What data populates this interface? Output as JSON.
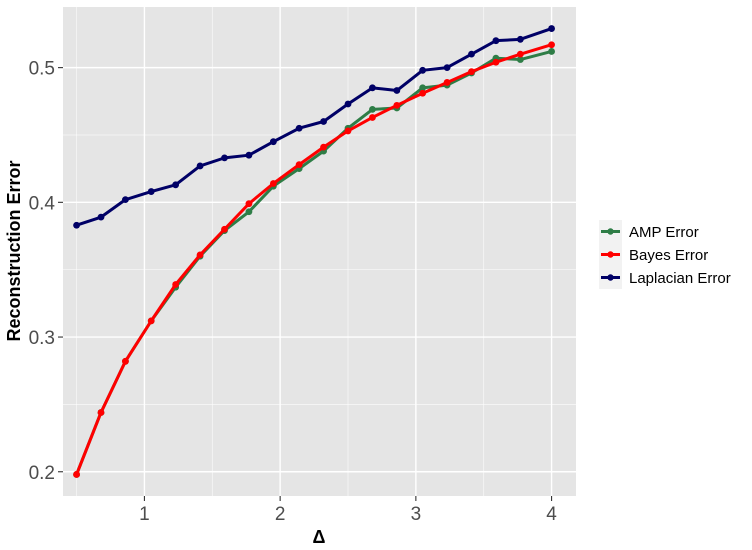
{
  "chart_data": {
    "type": "line",
    "title": "",
    "xlabel": "Δ",
    "ylabel": "Reconstruction Error",
    "xlim": [
      0.4,
      4.18
    ],
    "ylim": [
      0.182,
      0.545
    ],
    "x_ticks": [
      1,
      2,
      3,
      4
    ],
    "x_tick_labels": [
      "1",
      "2",
      "3",
      "4"
    ],
    "y_ticks": [
      0.2,
      0.3,
      0.4,
      0.5
    ],
    "y_tick_labels": [
      "0.2",
      "0.3",
      "0.4",
      "0.5"
    ],
    "grid": true,
    "legend_position": "right",
    "x": [
      0.5,
      0.68,
      0.86,
      1.05,
      1.23,
      1.41,
      1.59,
      1.77,
      1.95,
      2.14,
      2.32,
      2.5,
      2.68,
      2.86,
      3.05,
      3.23,
      3.41,
      3.59,
      3.77,
      4.0
    ],
    "series": [
      {
        "name": "AMP Error",
        "color": "#2e7d46",
        "values": [
          0.198,
          0.244,
          0.282,
          0.312,
          0.337,
          0.36,
          0.379,
          0.393,
          0.412,
          0.425,
          0.438,
          0.455,
          0.469,
          0.47,
          0.485,
          0.487,
          0.496,
          0.507,
          0.506,
          0.512
        ]
      },
      {
        "name": "Bayes Error",
        "color": "#ff0000",
        "values": [
          0.198,
          0.244,
          0.282,
          0.312,
          0.339,
          0.361,
          0.38,
          0.399,
          0.414,
          0.428,
          0.441,
          0.453,
          0.463,
          0.472,
          0.481,
          0.489,
          0.497,
          0.504,
          0.51,
          0.517
        ]
      },
      {
        "name": "Laplacian Error",
        "color": "#000066",
        "values": [
          0.383,
          0.389,
          0.402,
          0.408,
          0.413,
          0.427,
          0.433,
          0.435,
          0.445,
          0.455,
          0.46,
          0.473,
          0.485,
          0.483,
          0.498,
          0.5,
          0.51,
          0.52,
          0.521,
          0.529
        ]
      }
    ]
  },
  "style": {
    "panel_background": "#e5e5e5",
    "grid_color": "#ffffff",
    "legend_key_background": "#f2f2f2"
  }
}
